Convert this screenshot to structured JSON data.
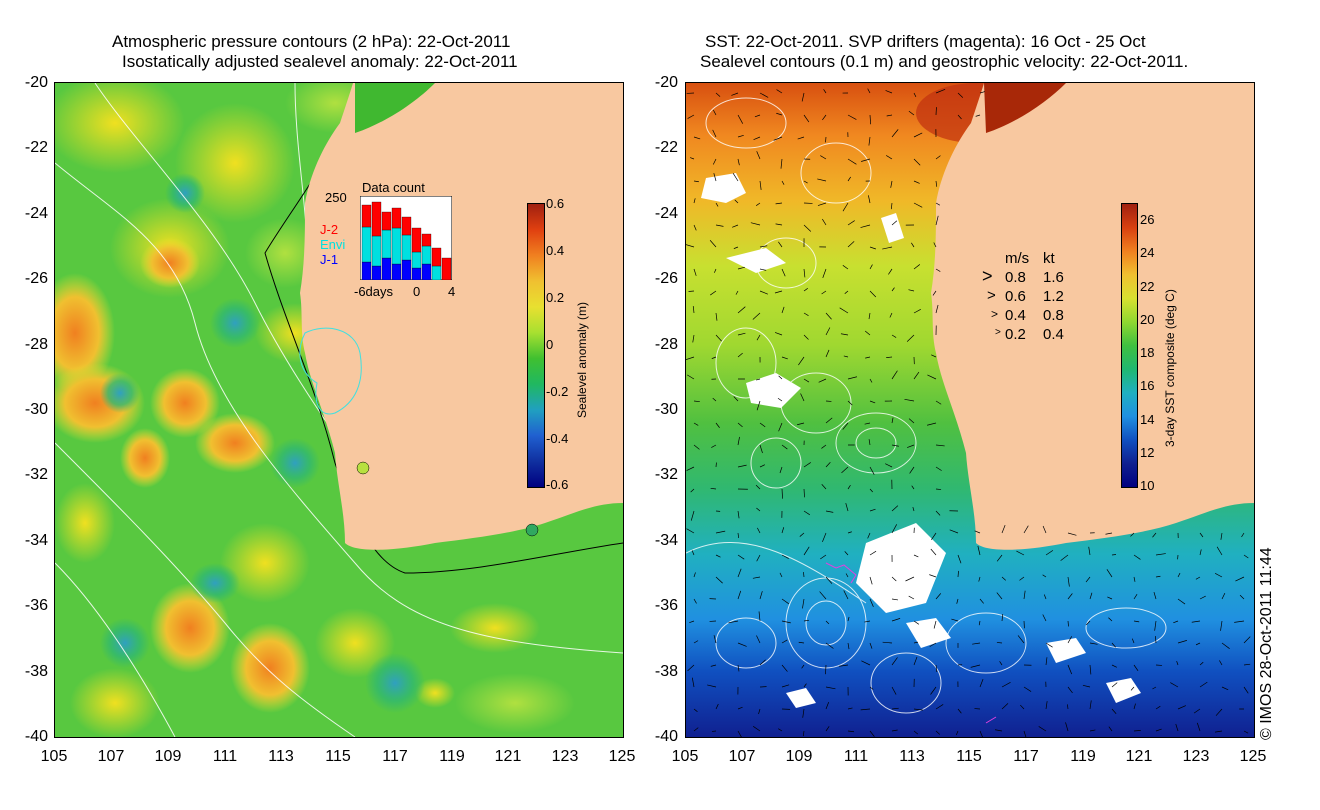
{
  "left_panel": {
    "title_line1": "Atmospheric pressure contours (2 hPa): 22-Oct-2011",
    "title_line2": "Isostatically adjusted sealevel anomaly: 22-Oct-2011",
    "colorbar": {
      "label": "Sealevel anomaly (m)",
      "ticks": [
        "0.6",
        "0.4",
        "0.2",
        "0",
        "-0.2",
        "-0.4",
        "-0.6"
      ],
      "range": [
        -0.6,
        0.6
      ]
    },
    "data_count": {
      "title": "Data count",
      "ymax_label": "250",
      "series": [
        "J-2",
        "Envi",
        "J-1"
      ],
      "series_colors": [
        "#ff0000",
        "#00e0e0",
        "#0000ff"
      ],
      "x_labels": [
        "-6days",
        "0",
        "4"
      ]
    }
  },
  "right_panel": {
    "title_line1": "SST: 22-Oct-2011. SVP drifters (magenta): 16 Oct - 25 Oct",
    "title_line2": "Sealevel contours (0.1 m) and geostrophic velocity: 22-Oct-2011.",
    "colorbar": {
      "label": "3-day SST composite (deg C)",
      "ticks": [
        "26",
        "24",
        "22",
        "20",
        "18",
        "16",
        "14",
        "12",
        "10"
      ],
      "range": [
        10,
        27
      ]
    },
    "velocity_legend": {
      "header_ms": "m/s",
      "header_kt": "kt",
      "rows": [
        {
          "ms": "0.8",
          "kt": "1.6"
        },
        {
          "ms": "0.6",
          "kt": "1.2"
        },
        {
          "ms": "0.4",
          "kt": "0.8"
        },
        {
          "ms": "0.2",
          "kt": "0.4"
        }
      ]
    }
  },
  "axes": {
    "lat_ticks": [
      "-20",
      "-22",
      "-24",
      "-26",
      "-28",
      "-30",
      "-32",
      "-34",
      "-36",
      "-38",
      "-40"
    ],
    "lon_ticks": [
      "105",
      "107",
      "109",
      "111",
      "113",
      "115",
      "117",
      "119",
      "121",
      "123",
      "125"
    ]
  },
  "credit": "© IMOS 28-Oct-2011 11:44",
  "colors": {
    "land": "#f8c8a0",
    "frame": "#000000"
  }
}
